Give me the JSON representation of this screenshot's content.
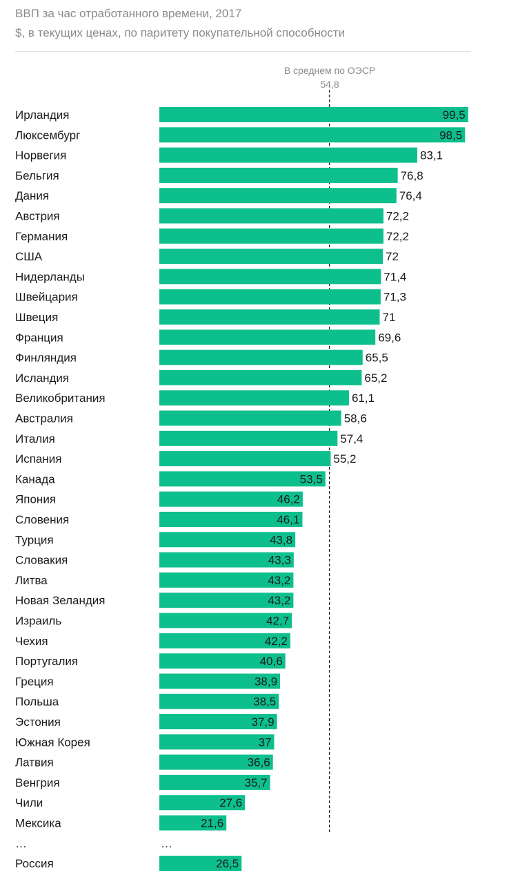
{
  "header": {
    "title": "ВВП за час отработанного времени, 2017",
    "subtitle": "$, в текущих ценах, по паритету покупательной способности"
  },
  "reference": {
    "label": "В среднем по ОЭСР",
    "value_label": "54,8"
  },
  "colors": {
    "bar": "#0ebf8e",
    "text": "#1a1a1a",
    "muted": "#8a8a8a"
  },
  "chart_data": {
    "type": "bar",
    "orientation": "horizontal",
    "title": "ВВП за час отработанного времени, 2017",
    "subtitle": "$, в текущих ценах, по паритету покупательной способности",
    "reference_line": {
      "label": "В среднем по ОЭСР",
      "value": 54.8
    },
    "categories": [
      "Ирландия",
      "Люксембург",
      "Норвегия",
      "Бельгия",
      "Дания",
      "Австрия",
      "Германия",
      "США",
      "Нидерланды",
      "Швейцария",
      "Швеция",
      "Франция",
      "Финляндия",
      "Исландия",
      "Великобритания",
      "Австралия",
      "Италия",
      "Испания",
      "Канада",
      "Япония",
      "Словения",
      "Турция",
      "Словакия",
      "Литва",
      "Новая Зеландия",
      "Израиль",
      "Чехия",
      "Португалия",
      "Греция",
      "Польша",
      "Эстония",
      "Южная Корея",
      "Латвия",
      "Венгрия",
      "Чили",
      "Мексика",
      "…",
      "Россия"
    ],
    "values": [
      99.5,
      98.5,
      83.1,
      76.8,
      76.4,
      72.2,
      72.2,
      72,
      71.4,
      71.3,
      71,
      69.6,
      65.5,
      65.2,
      61.1,
      58.6,
      57.4,
      55.2,
      53.5,
      46.2,
      46.1,
      43.8,
      43.3,
      43.2,
      43.2,
      42.7,
      42.2,
      40.6,
      38.9,
      38.5,
      37.9,
      37,
      36.6,
      35.7,
      27.6,
      21.6,
      null,
      26.5
    ],
    "value_labels": [
      "99,5",
      "98,5",
      "83,1",
      "76,8",
      "76,4",
      "72,2",
      "72,2",
      "72",
      "71,4",
      "71,3",
      "71",
      "69,6",
      "65,5",
      "65,2",
      "61,1",
      "58,6",
      "57,4",
      "55,2",
      "53,5",
      "46,2",
      "46,1",
      "43,8",
      "43,3",
      "43,2",
      "43,2",
      "42,7",
      "42,2",
      "40,6",
      "38,9",
      "38,5",
      "37,9",
      "37",
      "36,6",
      "35,7",
      "27,6",
      "21,6",
      "…",
      "26,5"
    ],
    "xlim": [
      0,
      100
    ],
    "grid": false,
    "legend": "none"
  }
}
